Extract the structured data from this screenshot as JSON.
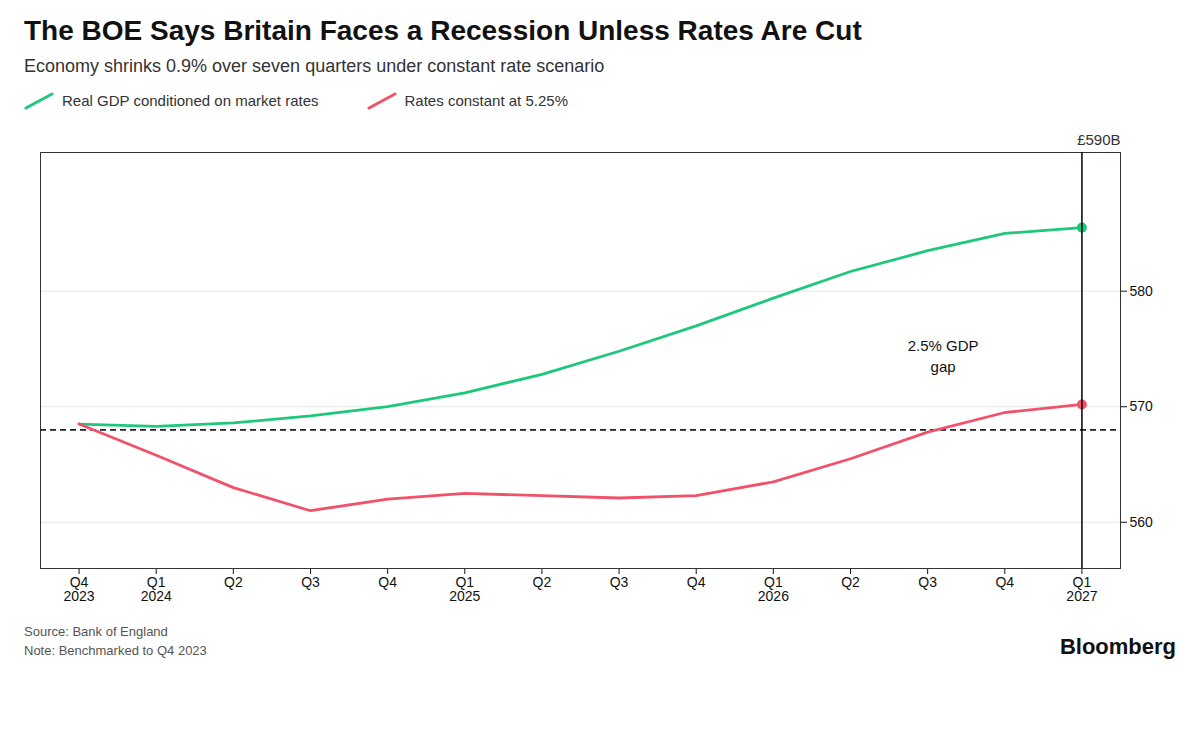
{
  "chart_data": {
    "type": "line",
    "title": "The BOE Says Britain Faces a Recession Unless Rates Are Cut",
    "subtitle": "Economy shrinks 0.9% over seven quarters under constant rate scenario",
    "ylabel": "£590B",
    "source": "Source: Bank of England",
    "note": "Note: Benchmarked to Q4 2023",
    "credit": "Bloomberg",
    "legend": "top",
    "categories": [
      "Q4\n2023",
      "Q1\n2024",
      "Q2",
      "Q3",
      "Q4",
      "Q1\n2025",
      "Q2",
      "Q3",
      "Q4",
      "Q1\n2026",
      "Q2",
      "Q3",
      "Q4",
      "Q1\n2027"
    ],
    "series": [
      {
        "name": "Real GDP conditioned on market rates",
        "color": "#1ec87a",
        "marker": "last",
        "values": [
          568.5,
          568.3,
          568.6,
          569.2,
          570.0,
          571.2,
          572.8,
          574.8,
          577.0,
          579.4,
          581.7,
          583.5,
          585.0,
          585.5
        ]
      },
      {
        "name": "Rates constant at 5.25%",
        "color": "#f0526a",
        "marker": "last",
        "values": [
          568.5,
          565.8,
          563.0,
          561.0,
          562.0,
          562.5,
          562.3,
          562.1,
          562.3,
          563.5,
          565.5,
          567.8,
          569.5,
          570.2
        ]
      }
    ],
    "hlines": [
      {
        "y": 568.0,
        "color": "#222222",
        "line_style": "dashed"
      }
    ],
    "vlines": [
      {
        "x": 13,
        "color": "#000000"
      }
    ],
    "annotations": [
      {
        "text": "2.5% GDP\ngap",
        "x": 11.2,
        "y": 574.5
      }
    ],
    "ylim": [
      556,
      592
    ],
    "yticks": [
      560,
      570,
      580
    ],
    "grid": true
  }
}
